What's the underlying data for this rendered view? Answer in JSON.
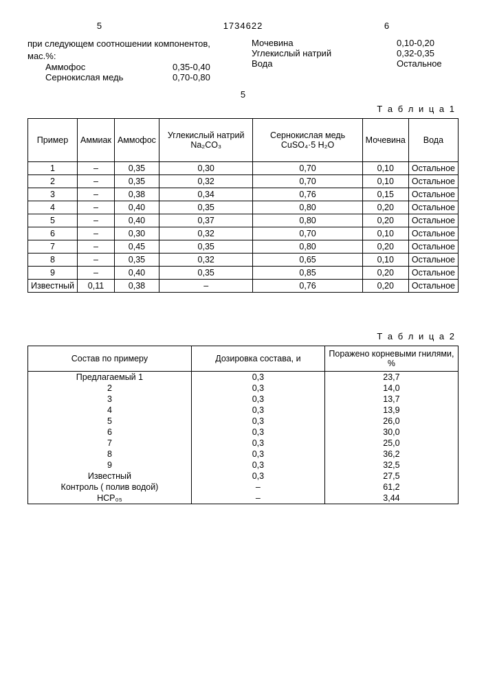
{
  "header": {
    "leftPage": "5",
    "docnum": "1734622",
    "rightPage": "6"
  },
  "left_col": {
    "intro_line1": "при следующем соотношении компонентов,",
    "intro_line2": "мас.%:",
    "ingredients": [
      {
        "name": "Аммофос",
        "value": "0,35-0,40"
      },
      {
        "name": "Сернокислая медь",
        "value": "0,70-0,80"
      }
    ]
  },
  "right_col": {
    "ingredients": [
      {
        "name": "Мочевина",
        "value": "0,10-0,20"
      },
      {
        "name": "Углекислый натрий",
        "value": "0,32-0,35"
      },
      {
        "name": "Вода",
        "value": "Остальное"
      }
    ]
  },
  "mid": "5",
  "table1": {
    "label": "Т а б л и ц а 1",
    "columns": [
      "Пример",
      "Аммиак",
      "Аммофос",
      "Углекислый натрий Na₂CO₃",
      "Сернокислая медь CuSO₄·5 H₂O",
      "Мочевина",
      "Вода"
    ],
    "rows": [
      [
        "1",
        "–",
        "0,35",
        "0,30",
        "0,70",
        "0,10",
        "Остальное"
      ],
      [
        "2",
        "–",
        "0,35",
        "0,32",
        "0,70",
        "0,10",
        "Остальное"
      ],
      [
        "3",
        "–",
        "0,38",
        "0,34",
        "0,76",
        "0,15",
        "Остальное"
      ],
      [
        "4",
        "–",
        "0,40",
        "0,35",
        "0,80",
        "0,20",
        "Остальное"
      ],
      [
        "5",
        "–",
        "0,40",
        "0,37",
        "0,80",
        "0,20",
        "Остальное"
      ],
      [
        "6",
        "–",
        "0,30",
        "0,32",
        "0,70",
        "0,10",
        "Остальное"
      ],
      [
        "7",
        "–",
        "0,45",
        "0,35",
        "0,80",
        "0,20",
        "Остальное"
      ],
      [
        "8",
        "–",
        "0,35",
        "0,32",
        "0,65",
        "0,10",
        "Остальное"
      ],
      [
        "9",
        "–",
        "0,40",
        "0,35",
        "0,85",
        "0,20",
        "Остальное"
      ],
      [
        "Известный",
        "0,11",
        "0,38",
        "–",
        "0,76",
        "0,20",
        "Остальное"
      ]
    ]
  },
  "table2": {
    "label": "Т а б л и ц а 2",
    "columns": [
      "Состав по примеру",
      "Дозировка состава, и",
      "Поражено корневыми гниля­ми, %"
    ],
    "rows": [
      [
        "Предлагаемый 1",
        "0,3",
        "23,7"
      ],
      [
        "2",
        "0,3",
        "14,0"
      ],
      [
        "3",
        "0,3",
        "13,7"
      ],
      [
        "4",
        "0,3",
        "13,9"
      ],
      [
        "5",
        "0,3",
        "26,0"
      ],
      [
        "6",
        "0,3",
        "30,0"
      ],
      [
        "7",
        "0,3",
        "25,0"
      ],
      [
        "8",
        "0,3",
        "36,2"
      ],
      [
        "9",
        "0,3",
        "32,5"
      ],
      [
        "Известный",
        "0,3",
        "27,5"
      ],
      [
        "Контроль ( полив водой)",
        "–",
        "61,2"
      ],
      [
        "НСР₀₅",
        "–",
        "3,44"
      ]
    ]
  }
}
